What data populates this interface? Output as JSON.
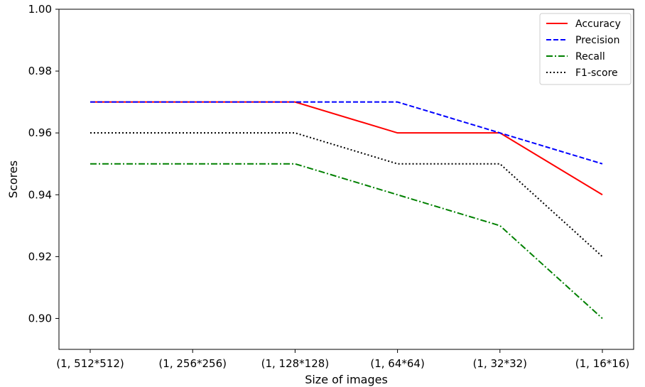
{
  "chart_data": {
    "type": "line",
    "title": "",
    "xlabel": "Size of images",
    "ylabel": "Scores",
    "categories": [
      "(1, 512*512)",
      "(1, 256*256)",
      "(1, 128*128)",
      "(1, 64*64)",
      "(1, 32*32)",
      "(1, 16*16)"
    ],
    "ylim": [
      0.89,
      1.0
    ],
    "yticks": [
      "0.90",
      "0.92",
      "0.94",
      "0.96",
      "0.98",
      "1.00"
    ],
    "grid": false,
    "legend_position": "top-right",
    "series": [
      {
        "name": "Accuracy",
        "values": [
          0.97,
          0.97,
          0.97,
          0.96,
          0.96,
          0.94
        ],
        "color": "#ff0000",
        "dash": "solid"
      },
      {
        "name": "Precision",
        "values": [
          0.97,
          0.97,
          0.97,
          0.97,
          0.96,
          0.95
        ],
        "color": "#0000ff",
        "dash": "dashed"
      },
      {
        "name": "Recall",
        "values": [
          0.95,
          0.95,
          0.95,
          0.94,
          0.93,
          0.9
        ],
        "color": "#008000",
        "dash": "dashdot"
      },
      {
        "name": "F1-score",
        "values": [
          0.96,
          0.96,
          0.96,
          0.95,
          0.95,
          0.92
        ],
        "color": "#000000",
        "dash": "dotted"
      }
    ]
  }
}
